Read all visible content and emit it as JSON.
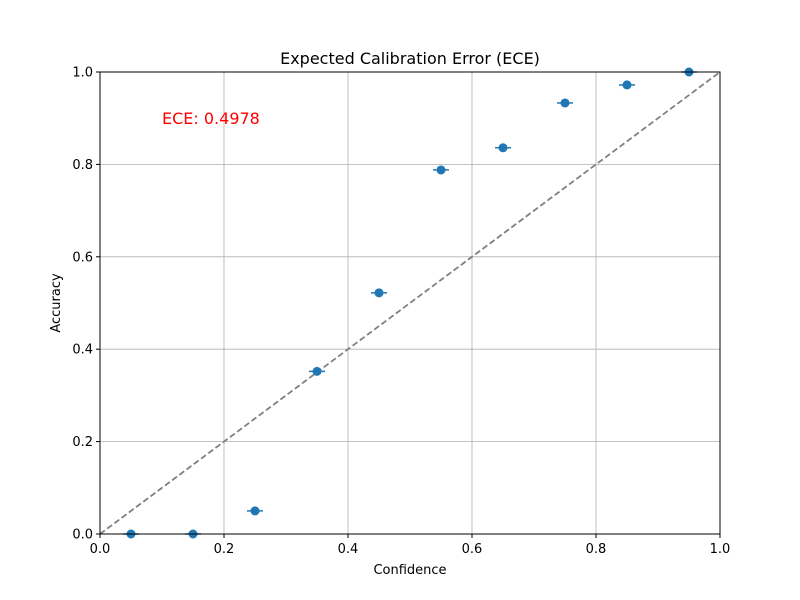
{
  "chart_data": {
    "type": "scatter",
    "title": "Expected Calibration Error (ECE)",
    "xlabel": "Confidence",
    "ylabel": "Accuracy",
    "xlim": [
      0.0,
      1.0
    ],
    "ylim": [
      0.0,
      1.0
    ],
    "grid": true,
    "x_ticks": [
      "0.0",
      "0.2",
      "0.4",
      "0.6",
      "0.8",
      "1.0"
    ],
    "y_ticks": [
      "0.0",
      "0.2",
      "0.4",
      "0.6",
      "0.8",
      "1.0"
    ],
    "points": [
      {
        "x": 0.05,
        "y": 0.0
      },
      {
        "x": 0.15,
        "y": 0.0
      },
      {
        "x": 0.25,
        "y": 0.05
      },
      {
        "x": 0.35,
        "y": 0.352
      },
      {
        "x": 0.45,
        "y": 0.522
      },
      {
        "x": 0.55,
        "y": 0.788
      },
      {
        "x": 0.65,
        "y": 0.836
      },
      {
        "x": 0.75,
        "y": 0.933
      },
      {
        "x": 0.85,
        "y": 0.972
      },
      {
        "x": 0.95,
        "y": 1.0
      }
    ],
    "reference_line": {
      "from": [
        0.0,
        0.0
      ],
      "to": [
        1.0,
        1.0
      ],
      "style": "dashed",
      "color": "#808080"
    },
    "annotation": {
      "text": "ECE: 0.4978",
      "x": 0.1,
      "y": 0.9,
      "color": "#ff0000"
    },
    "point_color": "#1f77b4"
  }
}
